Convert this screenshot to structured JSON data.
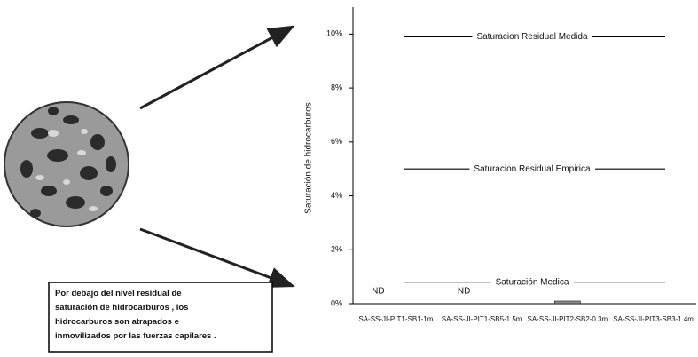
{
  "chart_data": {
    "type": "bar",
    "y_label": "Saturación de hidrocarburos",
    "categories": [
      "SA-SS-JI-PIT1-SB1-1m",
      "SA-SS-JI-PIT1-SB5-1.5m",
      "SA-SS-JI-PIT2-SB2-0.3m",
      "SA-SS-JI-PIT3-SB3-1.4m"
    ],
    "values": [
      null,
      null,
      0.1,
      null
    ],
    "value_labels": [
      "ND",
      "ND",
      null,
      null
    ],
    "color": "#888888",
    "ylim": [
      0,
      11
    ],
    "yticks": [
      {
        "value": 0,
        "label": "0%"
      },
      {
        "value": 2,
        "label": "2%"
      },
      {
        "value": 4,
        "label": "4%"
      },
      {
        "value": 6,
        "label": "6%"
      },
      {
        "value": 8,
        "label": "8%"
      },
      {
        "value": 10,
        "label": "10%"
      }
    ],
    "reference_lines": [
      {
        "value": 9.9,
        "label": "Saturacion Residual Medida"
      },
      {
        "value": 5.0,
        "label": "Saturacion Residual Empirica"
      },
      {
        "value": 0.8,
        "label": "Saturación Medica"
      }
    ],
    "annotation": [
      "Por debajo del nivel residual de",
      "saturación de hidrocarburos , los",
      "hidrocarburos son atrapados e",
      "inmovilizados por las fuerzas capilares ."
    ]
  }
}
